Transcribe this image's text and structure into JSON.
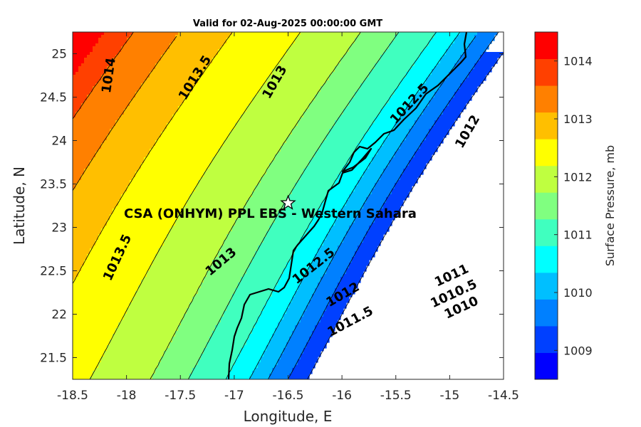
{
  "title": "Valid for 02-Aug-2025 00:00:00 GMT",
  "chart_data": {
    "type": "contour-map",
    "xlabel": "Longitude, E",
    "ylabel": "Latitude, N",
    "xlim": [
      -18.5,
      -14.5
    ],
    "ylim": [
      21.25,
      25.25
    ],
    "xticks": [
      "-18.5",
      "-18",
      "-17.5",
      "-17",
      "-16.5",
      "-16",
      "-15.5",
      "-15",
      "-14.5"
    ],
    "yticks": [
      "21.5",
      "22",
      "22.5",
      "23",
      "23.5",
      "24",
      "24.5",
      "25"
    ],
    "colorbar": {
      "label": "Surface Pressure, mb",
      "ticks": [
        "1009",
        "1010",
        "1011",
        "1012",
        "1013",
        "1014"
      ],
      "range": [
        1008.5,
        1014.5
      ],
      "colors": [
        "#0000ff",
        "#0040ff",
        "#0080ff",
        "#00bfff",
        "#00ffff",
        "#40ffbf",
        "#80ff80",
        "#bfff40",
        "#ffff00",
        "#ffbf00",
        "#ff8000",
        "#ff4000",
        "#ff0000"
      ]
    },
    "contour_labels": [
      {
        "text": "1014",
        "lon": -18.16,
        "lat": 24.75,
        "angle": -82
      },
      {
        "text": "1013.5",
        "lon": -17.36,
        "lat": 24.72,
        "angle": -58
      },
      {
        "text": "1013",
        "lon": -16.62,
        "lat": 24.67,
        "angle": -60
      },
      {
        "text": "1012.5",
        "lon": -15.37,
        "lat": 24.42,
        "angle": -47
      },
      {
        "text": "1012",
        "lon": -14.83,
        "lat": 24.1,
        "angle": -60
      },
      {
        "text": "1013.5",
        "lon": -18.08,
        "lat": 22.65,
        "angle": -65
      },
      {
        "text": "1013",
        "lon": -17.12,
        "lat": 22.6,
        "angle": -40
      },
      {
        "text": "1012.5",
        "lon": -16.26,
        "lat": 22.55,
        "angle": -38
      },
      {
        "text": "1012",
        "lon": -15.99,
        "lat": 22.22,
        "angle": -30
      },
      {
        "text": "1011.5",
        "lon": -15.92,
        "lat": 21.91,
        "angle": -28
      },
      {
        "text": "1011",
        "lon": -14.98,
        "lat": 22.44,
        "angle": -25
      },
      {
        "text": "1010.5",
        "lon": -14.96,
        "lat": 22.23,
        "angle": -25
      },
      {
        "text": "1010",
        "lon": -14.89,
        "lat": 22.07,
        "angle": -25
      }
    ],
    "site": {
      "label": "CSA (ONHYM) PPL EBS  - Western Sahara",
      "lon": -16.5,
      "lat": 23.28
    }
  }
}
